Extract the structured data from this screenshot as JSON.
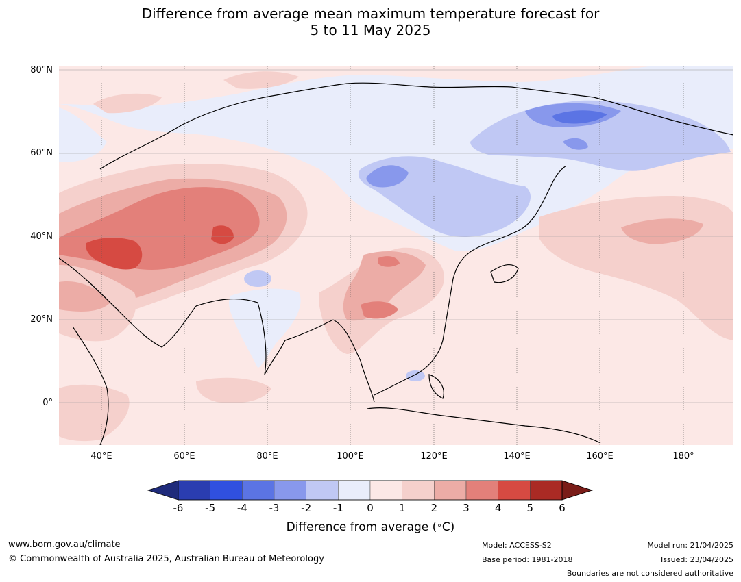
{
  "title_line1": "Difference from average mean maximum temperature forecast for",
  "title_line2": "5 to 11 May 2025",
  "lat_labels": [
    "80°N",
    "60°N",
    "40°N",
    "20°N",
    "0°"
  ],
  "lon_labels": [
    "40°E",
    "60°E",
    "80°E",
    "100°E",
    "120°E",
    "140°E",
    "160°E",
    "180°"
  ],
  "colorbar": {
    "ticks": [
      "-6",
      "-5",
      "-4",
      "-3",
      "-2",
      "-1",
      "0",
      "1",
      "2",
      "3",
      "4",
      "5",
      "6"
    ],
    "label": "Difference from average (∘C)",
    "label_text": "Difference from average (",
    "label_unit": "C)",
    "colors": [
      "#1f2b7b",
      "#2a3db0",
      "#3050e0",
      "#5b74e4",
      "#8898ec",
      "#c0c8f4",
      "#e9edfb",
      "#fce8e6",
      "#f5d0cc",
      "#ecaca6",
      "#e3807a",
      "#d64a42",
      "#aa2a24",
      "#7a1c18"
    ],
    "legend_scale": "-6 to 6"
  },
  "map_features": {
    "legend_colors": {
      "neg1": "#e9edfb",
      "neg2": "#c0c8f4",
      "neg3": "#8898ec",
      "neg4": "#5b74e4",
      "pos1": "#fce8e6",
      "pos2": "#f5d0cc",
      "pos3": "#ecaca6",
      "pos4": "#e3807a",
      "pos5": "#d64a42"
    }
  },
  "footer": {
    "website": "www.bom.gov.au/climate",
    "copyright": "© Commonwealth of Australia 2025, Australian Bureau of Meteorology",
    "model": "Model: ACCESS-S2",
    "base_period": "Base period: 1981-2018",
    "model_run": "Model run: 21/04/2025",
    "issued": "Issued: 23/04/2025",
    "disclaimer": "Boundaries are not considered authoritative"
  }
}
